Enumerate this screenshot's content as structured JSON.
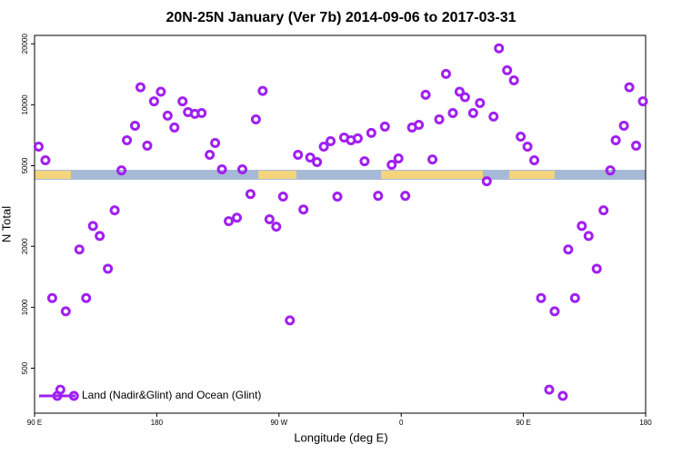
{
  "chart_data": {
    "type": "scatter",
    "title": "20N-25N January (Ver 7b)   2014-09-06 to 2017-03-31",
    "xlabel": "Longitude (deg E)",
    "ylabel": "N Total",
    "x": [
      93,
      98,
      103,
      109,
      113,
      119,
      123,
      128,
      133,
      138,
      144,
      149,
      154,
      158,
      164,
      168,
      173,
      178,
      183,
      188,
      193,
      199,
      203,
      208,
      213,
      219,
      223,
      228,
      233,
      239,
      243,
      249,
      253,
      258,
      263,
      268,
      273,
      278,
      284,
      288,
      293,
      298,
      303,
      308,
      313,
      318,
      323,
      328,
      333,
      338,
      343,
      348,
      353,
      358,
      363,
      368,
      373,
      378,
      383,
      388,
      393,
      398,
      403,
      407,
      413,
      418,
      423,
      428,
      432,
      438,
      443,
      448,
      453,
      458,
      463,
      469,
      473,
      479,
      483,
      488,
      493,
      498,
      504,
      509,
      514,
      518,
      524,
      528,
      533,
      538
    ],
    "series": [
      {
        "name": "Land (Nadir&Glint) and Ocean (Glint)",
        "color": "#a020f0",
        "values": [
          6210,
          5320,
          1110,
          392,
          955,
          365,
          1930,
          1110,
          2520,
          2250,
          1550,
          3010,
          4740,
          6680,
          7880,
          12200,
          6280,
          10400,
          11600,
          8830,
          7720,
          10400,
          9200,
          9020,
          9100,
          5660,
          6470,
          4800,
          2660,
          2770,
          4800,
          3620,
          8470,
          11700,
          2720,
          2500,
          3520,
          861,
          5660,
          3040,
          5490,
          5210,
          6210,
          6610,
          3520,
          6890,
          6680,
          6820,
          5260,
          7260,
          3550,
          7800,
          5050,
          5430,
          3550,
          7720,
          7960,
          11200,
          5370,
          8470,
          14200,
          9100,
          11600,
          10900,
          9100,
          10200,
          4190,
          8740,
          19000,
          14800,
          13200,
          6960,
          6210,
          5320,
          1110,
          392,
          955,
          365,
          1930,
          1110,
          2520,
          2250,
          1550,
          3010,
          4740,
          6680,
          7880,
          12200,
          6280,
          10400
        ]
      }
    ],
    "xlim": [
      90,
      540
    ],
    "xticks": [
      {
        "value": 90,
        "label": "90 E"
      },
      {
        "value": 180,
        "label": "180"
      },
      {
        "value": 270,
        "label": "90 W"
      },
      {
        "value": 360,
        "label": "0"
      },
      {
        "value": 450,
        "label": "90 E"
      },
      {
        "value": 540,
        "label": "180"
      }
    ],
    "ylim": [
      300,
      22000
    ],
    "yscale": "log",
    "yticks": [
      500,
      1000,
      2000,
      5000,
      10000,
      20000
    ],
    "legend": "lower left"
  }
}
